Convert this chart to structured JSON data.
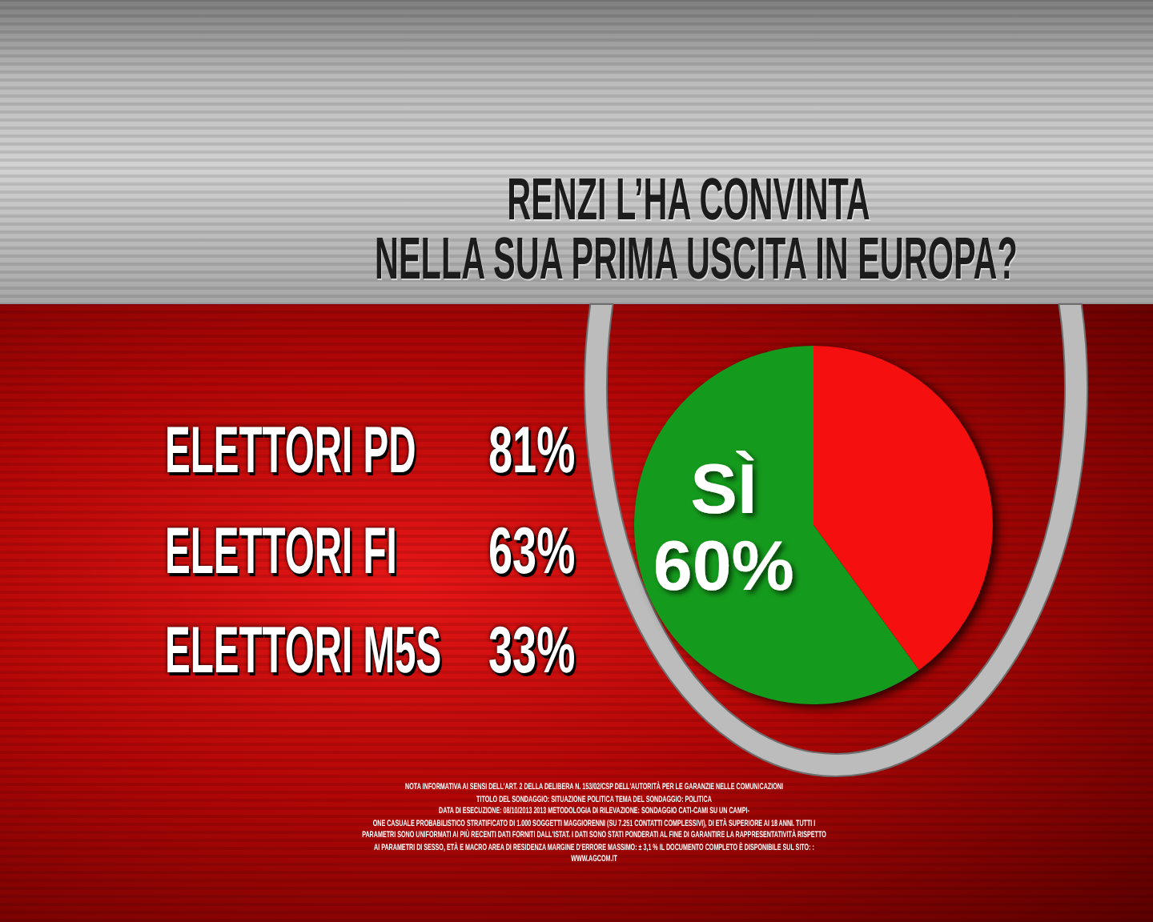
{
  "chart_data": [
    {
      "type": "other",
      "categories": [
        "ELETTORI PD",
        "ELETTORI FI",
        "ELETTORI M5S"
      ],
      "values": [
        81,
        63,
        33
      ],
      "value_labels": [
        "81%",
        "63%",
        "33%"
      ]
    },
    {
      "type": "pie",
      "title": "RENZI L’HA CONVINTA\nNELLA SUA PRIMA USCITA IN EUROPA?",
      "categories": [
        null,
        "SÌ"
      ],
      "values": [
        40,
        60
      ],
      "colors": [
        "#f50f0f",
        "#149a1c"
      ],
      "value_labels": [
        null,
        "60%"
      ],
      "annotations": [
        "NOTA INFORMATIVA AI SENSI DELL'ART. 2 DELLA DELIBERA N. 153/02/CSP DELL'AUTORITÀ PER LE GARANZIE NELLE COMUNICAZIONI",
        "TITOLO DEL SONDAGGIO: SITUAZIONE POLITICA  TEMA DEL SONDAGGIO: POLITICA",
        "DATA DI ESECUZIONE: 08/10/2013 2013 METODOLOGIA DI RILEVAZIONE: SONDAGGIO CATI-CAMI SU UN CAMPI-",
        "ONE CASUALE PROBABILISTICO STRATIFICATO DI 1.000 SOGGETTI MAGGIORENNI (SU 7.251 CONTATTI COMPLESSIVI), DI ETÀ SUPERIORE AI 18 ANNI. TUTTI I",
        "PARAMETRI SONO UNIFORMATI AI PIÙ RECENTI DATI FORNITI DALL'ISTAT. I DATI SONO STATI PONDERATI AL FINE DI GARANTIRE LA RAPPRESENTATIVITÀ RISPETTO",
        "AI PARAMETRI DI SESSO, ETÀ E MACRO AREA DI RESIDENZA MARGINE D'ERRORE MASSIMO: ± 3,1 % IL DOCUMENTO COMPLETO È DISPONIBILE SUL SITO: :",
        "WWW.AGCOM.IT"
      ]
    }
  ]
}
